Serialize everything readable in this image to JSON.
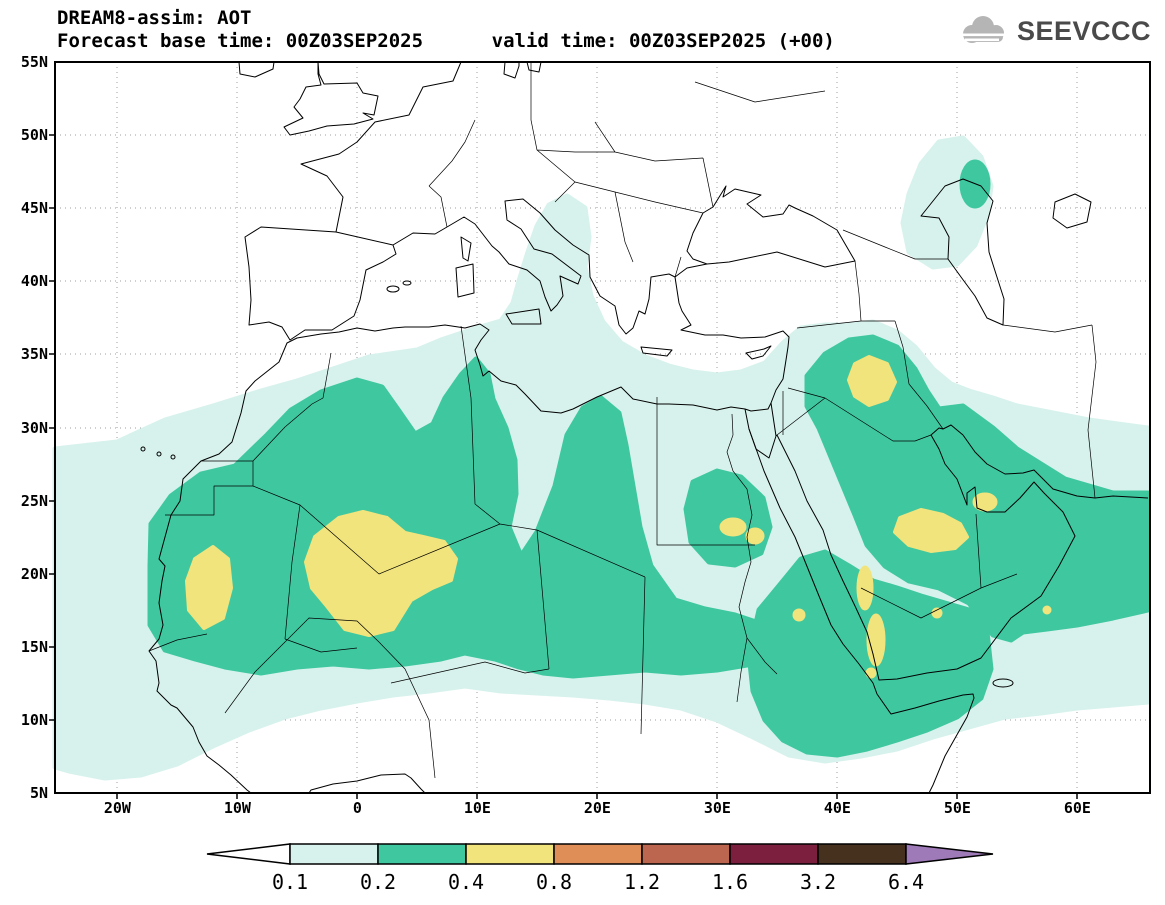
{
  "header": {
    "title": "DREAM8-assim: AOT",
    "subtitle": "Forecast base time: 00Z03SEP2025      valid time: 00Z03SEP2025 (+00)",
    "logo_text": "SEEVCCC"
  },
  "map": {
    "lat_labels": [
      "55N",
      "50N",
      "45N",
      "40N",
      "35N",
      "30N",
      "25N",
      "20N",
      "15N",
      "10N",
      "5N"
    ],
    "lon_labels": [
      "20W",
      "10W",
      "0",
      "10E",
      "20E",
      "30E",
      "40E",
      "50E",
      "60E"
    ]
  },
  "colorbar": {
    "tick_labels": [
      "0.1",
      "0.2",
      "0.4",
      "0.8",
      "1.2",
      "1.6",
      "3.2",
      "6.4"
    ],
    "colors": [
      "#ffffff",
      "#d7f2ec",
      "#3fc8a0",
      "#f2e47c",
      "#e08e57",
      "#bc6650",
      "#7c1f3e",
      "#46311f",
      "#9e7ab8"
    ]
  },
  "chart_data": {
    "type": "heatmap",
    "title": "DREAM8-assim: AOT",
    "variable": "Aerosol Optical Thickness (AOT), filled contours over geographic map",
    "forecast_base_time": "00Z03SEP2025",
    "valid_time": "00Z03SEP2025 (+00)",
    "forecast_hour": "+00",
    "x": {
      "label": "longitude",
      "ticks": [
        "20W",
        "10W",
        "0",
        "10E",
        "20E",
        "30E",
        "40E",
        "50E",
        "60E"
      ],
      "range_deg": [
        -25,
        66
      ]
    },
    "y": {
      "label": "latitude",
      "ticks": [
        "55N",
        "50N",
        "45N",
        "40N",
        "35N",
        "30N",
        "25N",
        "20N",
        "15N",
        "10N",
        "5N"
      ],
      "range_deg": [
        5,
        55
      ]
    },
    "levels": [
      0.1,
      0.2,
      0.4,
      0.8,
      1.2,
      1.6,
      3.2,
      6.4
    ],
    "level_colors": [
      "#ffffff",
      "#d7f2ec",
      "#3fc8a0",
      "#f2e47c",
      "#e08e57",
      "#bc6650",
      "#7c1f3e",
      "#46311f",
      "#9e7ab8"
    ],
    "regions": [
      {
        "value_range": "0.1-0.2",
        "description": "broad pale-cyan area from the tropical Atlantic across the whole Sahara, Sahel, Egypt and Arabia to ~65E between ~7N and ~35N; narrow tongue north over the central Mediterranean/Adriatic to ~46N; separate patch around the Caspian Sea (~41-50N, 45-53E)"
      },
      {
        "value_range": "0.2-0.4",
        "description": "large teal mass over Mauritania-Mali-Algeria (~13-33N) reaching the Tunisian coast; lobe over central/eastern Libya; Sahel band through Niger-Chad-Sudan; island over S Egypt / N Sudan; Red Sea - Ethiopia - Yemen - Horn of Africa mass; Iraq - Persian Gulf - Arabia mass extending to ~65E; small spot over the NE Caspian"
      },
      {
        "value_range": "0.4-0.8",
        "description": "yellow cores: Mauritania (~18-23N, 14-10W); large Algeria-Mali-Niger blob (~16-24N, 4W-8E); small Sudan spots (~22-24N, 30-33E); Iraq (~31-34N, 42-46E); central Saudi Arabia (~21-24N, 44-49E); Qatar/Gulf coast (~24-25N, 50-52E); Red Sea coastal strips (~13-20N, 42-43E) plus small dots near Eritrea, Yemen-Saudi border and the south Oman coast"
      }
    ]
  }
}
